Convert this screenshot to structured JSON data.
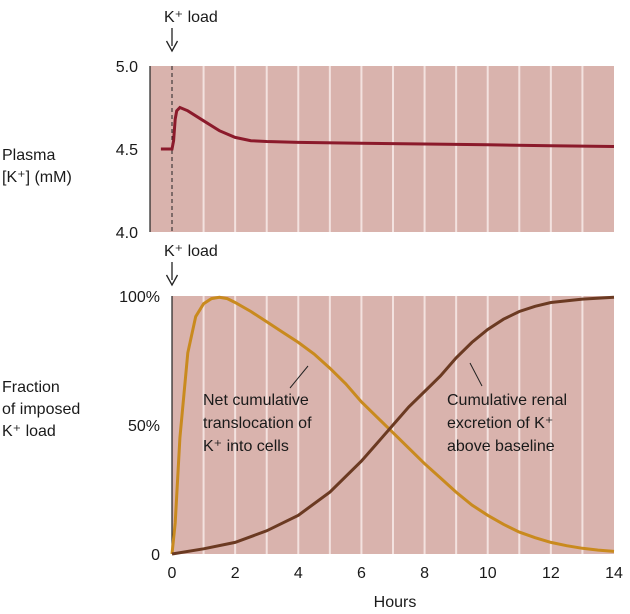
{
  "chart_data": [
    {
      "type": "line",
      "load_marker_text": "K⁺ load",
      "ylabel_lines": [
        "Plasma",
        "[K⁺] (mM)"
      ],
      "y_ticks": [
        "5.0",
        "4.5",
        "4.0"
      ],
      "ylim": [
        4.0,
        5.0
      ],
      "xlim": [
        0,
        14
      ],
      "grid": true,
      "series": [
        {
          "color": "#8b1a2b",
          "x": [
            -0.35,
            0,
            0.05,
            0.1,
            0.15,
            0.25,
            0.5,
            1,
            1.5,
            2,
            2.5,
            3,
            4,
            6,
            8,
            10,
            12,
            14
          ],
          "y": [
            4.5,
            4.5,
            4.55,
            4.68,
            4.73,
            4.75,
            4.73,
            4.67,
            4.61,
            4.57,
            4.55,
            4.545,
            4.54,
            4.535,
            4.53,
            4.525,
            4.52,
            4.515
          ]
        }
      ]
    },
    {
      "type": "line",
      "load_marker_text": "K⁺ load",
      "ylabel_lines": [
        "Fraction",
        "of imposed",
        "K⁺ load"
      ],
      "y_ticks": [
        "100%",
        "50%",
        "0"
      ],
      "ylim": [
        0,
        100
      ],
      "x_ticks": [
        "0",
        "2",
        "4",
        "6",
        "8",
        "10",
        "12",
        "14"
      ],
      "xlabel": "Hours",
      "xlim": [
        0,
        14
      ],
      "grid": true,
      "series": [
        {
          "color": "#c98a1e",
          "label_lines": [
            "Net cumulative",
            "translocation of",
            "K⁺ into cells"
          ],
          "x": [
            0,
            0.1,
            0.25,
            0.5,
            0.75,
            1,
            1.25,
            1.5,
            1.75,
            2,
            2.5,
            3,
            3.5,
            4,
            4.5,
            5,
            5.5,
            6,
            6.5,
            7,
            7.5,
            8,
            8.5,
            9,
            9.5,
            10,
            10.5,
            11,
            11.5,
            12,
            12.5,
            13,
            13.5,
            14
          ],
          "y": [
            0,
            12,
            45,
            78,
            92,
            97,
            99,
            99.5,
            99,
            97.5,
            94,
            90,
            86,
            82,
            77.5,
            72,
            66,
            59,
            53,
            47,
            41,
            35,
            29.5,
            24,
            19,
            15,
            11.5,
            8.5,
            6.3,
            4.5,
            3.2,
            2.2,
            1.5,
            1
          ]
        },
        {
          "color": "#6b3a22",
          "label_lines": [
            "Cumulative renal",
            "excretion of K⁺",
            "above baseline"
          ],
          "x": [
            0,
            1,
            2,
            3,
            4,
            5,
            6,
            6.5,
            7,
            7.5,
            8,
            8.5,
            9,
            9.5,
            10,
            10.5,
            11,
            11.5,
            12,
            13,
            14
          ],
          "y": [
            0,
            2,
            4.5,
            9,
            15,
            24,
            36,
            43,
            50,
            57,
            63,
            69,
            76,
            82,
            87,
            91,
            94,
            96,
            97.5,
            98.8,
            99.5
          ]
        }
      ]
    }
  ]
}
